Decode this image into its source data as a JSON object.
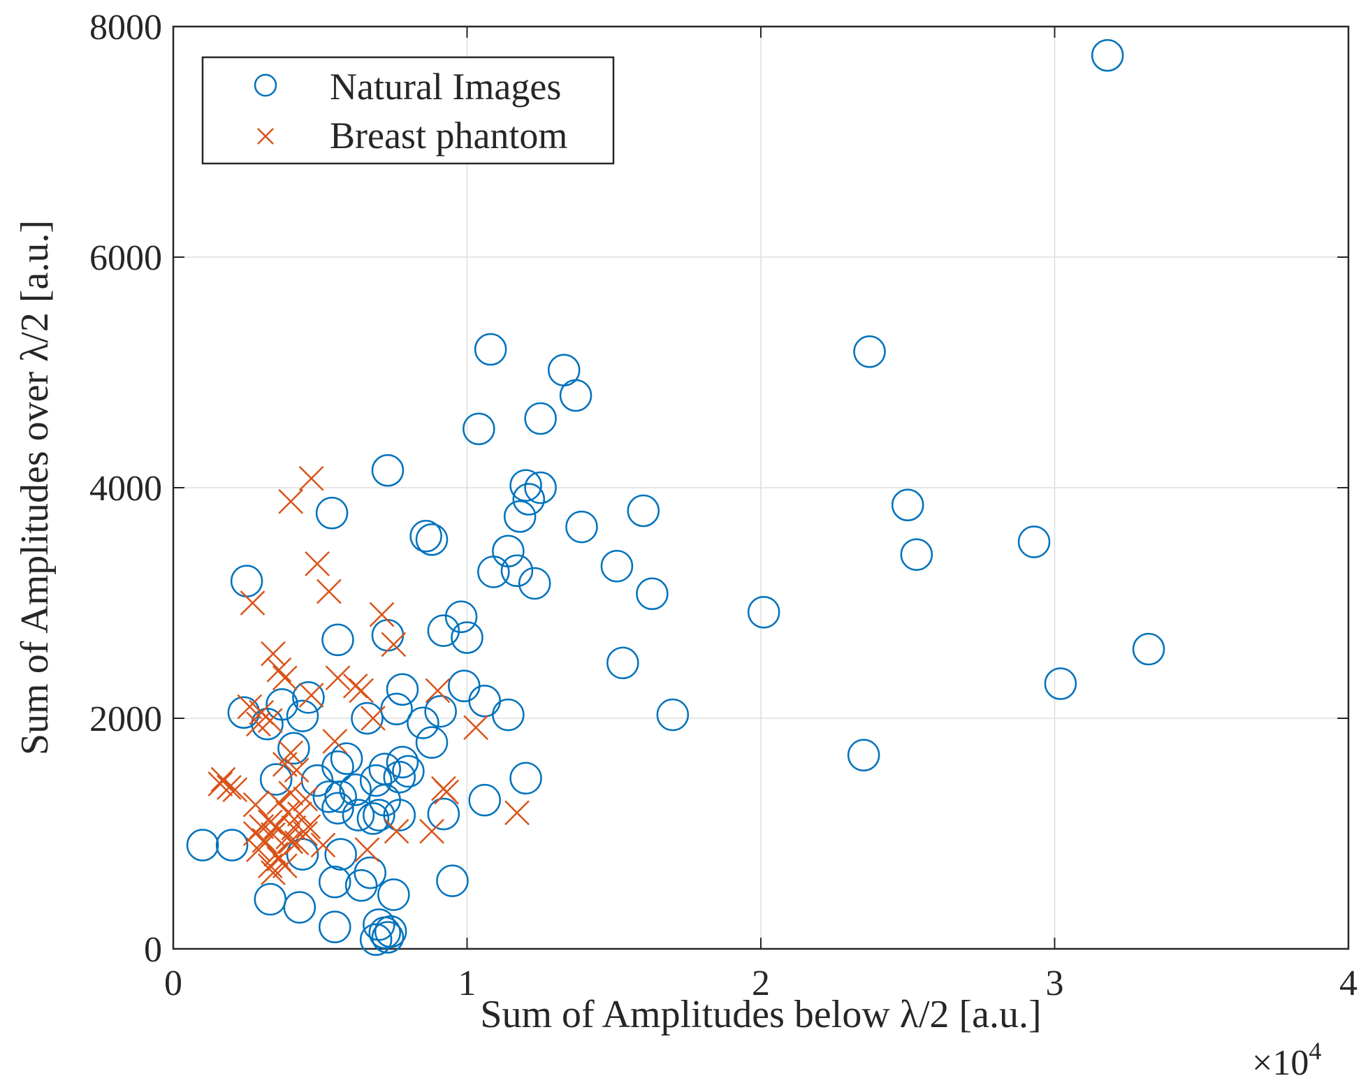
{
  "chart_data": {
    "type": "scatter",
    "title": "",
    "xlabel": "Sum of Amplitudes below λ/2 [a.u.]",
    "ylabel": "Sum of Amplitudes over λ/2 [a.u.]",
    "x_exponent_label": "×10",
    "x_exponent_power": "4",
    "xlim": [
      0,
      40000
    ],
    "ylim": [
      0,
      8000
    ],
    "xticks": [
      0,
      10000,
      20000,
      30000,
      40000
    ],
    "xtick_labels": [
      "0",
      "1",
      "2",
      "3",
      "4"
    ],
    "yticks": [
      0,
      2000,
      4000,
      6000,
      8000
    ],
    "ytick_labels": [
      "0",
      "2000",
      "4000",
      "6000",
      "8000"
    ],
    "grid": true,
    "legend_position": "top-left",
    "series": [
      {
        "name": "Natural Images",
        "marker": "circle",
        "color": "#0072BD",
        "points": [
          [
            31800,
            7750
          ],
          [
            23700,
            5180
          ],
          [
            10800,
            5200
          ],
          [
            13300,
            5020
          ],
          [
            13700,
            4800
          ],
          [
            12500,
            4600
          ],
          [
            10400,
            4510
          ],
          [
            7300,
            4150
          ],
          [
            12000,
            4020
          ],
          [
            12500,
            4000
          ],
          [
            12100,
            3900
          ],
          [
            11800,
            3750
          ],
          [
            5400,
            3780
          ],
          [
            16000,
            3800
          ],
          [
            25000,
            3850
          ],
          [
            13900,
            3660
          ],
          [
            8600,
            3580
          ],
          [
            8800,
            3550
          ],
          [
            29300,
            3530
          ],
          [
            11400,
            3450
          ],
          [
            25300,
            3420
          ],
          [
            2500,
            3190
          ],
          [
            10900,
            3270
          ],
          [
            11700,
            3280
          ],
          [
            12300,
            3170
          ],
          [
            15100,
            3320
          ],
          [
            16300,
            3080
          ],
          [
            20100,
            2920
          ],
          [
            9800,
            2880
          ],
          [
            5600,
            2680
          ],
          [
            7300,
            2720
          ],
          [
            9200,
            2760
          ],
          [
            10000,
            2700
          ],
          [
            33200,
            2600
          ],
          [
            15300,
            2480
          ],
          [
            30200,
            2300
          ],
          [
            9900,
            2280
          ],
          [
            7800,
            2250
          ],
          [
            4600,
            2180
          ],
          [
            3700,
            2120
          ],
          [
            7600,
            2080
          ],
          [
            10600,
            2150
          ],
          [
            9100,
            2060
          ],
          [
            2400,
            2050
          ],
          [
            4400,
            2020
          ],
          [
            6600,
            2000
          ],
          [
            8500,
            1960
          ],
          [
            11400,
            2030
          ],
          [
            17000,
            2030
          ],
          [
            3200,
            1950
          ],
          [
            8800,
            1790
          ],
          [
            4100,
            1740
          ],
          [
            23500,
            1680
          ],
          [
            5900,
            1650
          ],
          [
            7200,
            1560
          ],
          [
            7800,
            1620
          ],
          [
            5600,
            1580
          ],
          [
            8000,
            1540
          ],
          [
            3500,
            1470
          ],
          [
            4900,
            1460
          ],
          [
            6900,
            1460
          ],
          [
            12000,
            1480
          ],
          [
            7700,
            1490
          ],
          [
            5300,
            1320
          ],
          [
            5700,
            1320
          ],
          [
            6200,
            1380
          ],
          [
            10600,
            1290
          ],
          [
            7200,
            1290
          ],
          [
            5600,
            1220
          ],
          [
            6300,
            1160
          ],
          [
            7700,
            1160
          ],
          [
            9200,
            1170
          ],
          [
            7000,
            1160
          ],
          [
            6800,
            1130
          ],
          [
            1000,
            900
          ],
          [
            2000,
            900
          ],
          [
            4400,
            820
          ],
          [
            5700,
            820
          ],
          [
            6700,
            660
          ],
          [
            6400,
            550
          ],
          [
            5500,
            580
          ],
          [
            9500,
            590
          ],
          [
            7500,
            470
          ],
          [
            3300,
            430
          ],
          [
            4300,
            360
          ],
          [
            5500,
            190
          ],
          [
            7000,
            210
          ],
          [
            7200,
            140
          ],
          [
            7400,
            150
          ],
          [
            6900,
            80
          ],
          [
            7300,
            100
          ]
        ]
      },
      {
        "name": "Breast phantom",
        "marker": "x",
        "color": "#D95319",
        "points": [
          [
            4700,
            4080
          ],
          [
            4000,
            3880
          ],
          [
            4900,
            3340
          ],
          [
            5300,
            3100
          ],
          [
            2700,
            3000
          ],
          [
            7100,
            2900
          ],
          [
            7500,
            2640
          ],
          [
            3400,
            2560
          ],
          [
            3600,
            2420
          ],
          [
            3800,
            2350
          ],
          [
            5600,
            2350
          ],
          [
            6200,
            2280
          ],
          [
            6400,
            2240
          ],
          [
            9000,
            2240
          ],
          [
            4700,
            2200
          ],
          [
            2600,
            2100
          ],
          [
            3000,
            2050
          ],
          [
            6800,
            2000
          ],
          [
            3300,
            1980
          ],
          [
            2900,
            1950
          ],
          [
            10300,
            1920
          ],
          [
            5500,
            1800
          ],
          [
            4000,
            1700
          ],
          [
            3800,
            1600
          ],
          [
            4200,
            1550
          ],
          [
            1600,
            1430
          ],
          [
            1700,
            1470
          ],
          [
            1900,
            1400
          ],
          [
            2100,
            1380
          ],
          [
            9200,
            1390
          ],
          [
            9300,
            1360
          ],
          [
            4000,
            1350
          ],
          [
            4500,
            1300
          ],
          [
            3600,
            1270
          ],
          [
            2800,
            1250
          ],
          [
            3900,
            1180
          ],
          [
            4300,
            1170
          ],
          [
            11700,
            1180
          ],
          [
            3300,
            1100
          ],
          [
            3000,
            1060
          ],
          [
            3500,
            1060
          ],
          [
            4100,
            1050
          ],
          [
            4600,
            1060
          ],
          [
            2800,
            1000
          ],
          [
            3400,
            990
          ],
          [
            3900,
            970
          ],
          [
            4500,
            1000
          ],
          [
            8800,
            1020
          ],
          [
            7600,
            1020
          ],
          [
            3100,
            940
          ],
          [
            4200,
            920
          ],
          [
            5100,
            900
          ],
          [
            2900,
            860
          ],
          [
            3500,
            820
          ],
          [
            6600,
            860
          ],
          [
            3600,
            780
          ],
          [
            3300,
            720
          ],
          [
            3800,
            720
          ],
          [
            3400,
            660
          ],
          [
            4000,
            930
          ]
        ]
      }
    ]
  }
}
